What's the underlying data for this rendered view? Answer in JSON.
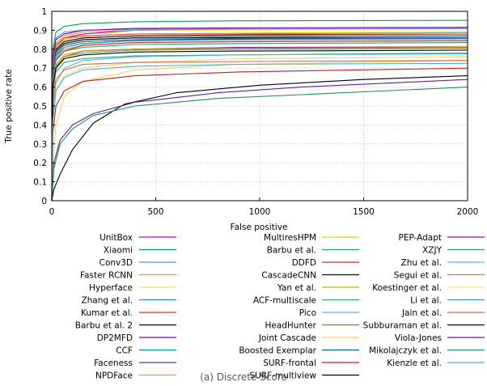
{
  "chart_data": {
    "type": "line",
    "xlabel": "False positive",
    "ylabel": "True positive rate",
    "xlim": [
      0,
      2000
    ],
    "ylim": [
      0,
      1
    ],
    "xticks": [
      0,
      500,
      1000,
      1500,
      2000
    ],
    "yticks": [
      0,
      0.1,
      0.2,
      0.3,
      0.4,
      0.5,
      0.6,
      0.7,
      0.8,
      0.9,
      1
    ],
    "grid": true,
    "legend_placement": "bottom",
    "caption": "(a) Discrete Score",
    "series": [
      {
        "name": "UnitBox",
        "color": "#c000c0",
        "x": [
          0,
          5,
          20,
          60,
          150,
          400,
          900,
          2000
        ],
        "y": [
          0,
          0.72,
          0.82,
          0.86,
          0.88,
          0.9,
          0.91,
          0.915
        ]
      },
      {
        "name": "Xiaomi",
        "color": "#00a060",
        "x": [
          0,
          5,
          20,
          60,
          150,
          400,
          900,
          2000
        ],
        "y": [
          0,
          0.8,
          0.89,
          0.92,
          0.935,
          0.945,
          0.95,
          0.952
        ]
      },
      {
        "name": "Conv3D",
        "color": "#40a0e0",
        "x": [
          0,
          5,
          20,
          60,
          150,
          400,
          900,
          2000
        ],
        "y": [
          0,
          0.78,
          0.86,
          0.89,
          0.9,
          0.905,
          0.91,
          0.912
        ]
      },
      {
        "name": "Faster RCNN",
        "color": "#e0a000",
        "x": [
          0,
          5,
          20,
          60,
          150,
          400,
          900,
          2000
        ],
        "y": [
          0,
          0.74,
          0.83,
          0.87,
          0.89,
          0.9,
          0.905,
          0.908
        ]
      },
      {
        "name": "Hyperface",
        "color": "#f0e050",
        "x": [
          0,
          5,
          20,
          60,
          150,
          400,
          900,
          2000
        ],
        "y": [
          0,
          0.7,
          0.8,
          0.85,
          0.87,
          0.88,
          0.885,
          0.89
        ]
      },
      {
        "name": "Zhang et al.",
        "color": "#3080d0",
        "x": [
          0,
          5,
          20,
          60,
          150,
          400,
          900,
          2000
        ],
        "y": [
          0,
          0.73,
          0.82,
          0.85,
          0.87,
          0.88,
          0.885,
          0.888
        ]
      },
      {
        "name": "Kumar et al.",
        "color": "#e03020",
        "x": [
          0,
          5,
          20,
          60,
          150,
          400,
          900,
          2000
        ],
        "y": [
          0,
          0.7,
          0.79,
          0.83,
          0.85,
          0.86,
          0.865,
          0.87
        ]
      },
      {
        "name": "Barbu et al. 2",
        "color": "#000000",
        "x": [
          0,
          5,
          20,
          60,
          150,
          400,
          900,
          2000
        ],
        "y": [
          0,
          0.72,
          0.8,
          0.84,
          0.86,
          0.87,
          0.875,
          0.88
        ]
      },
      {
        "name": "DP2MFD",
        "color": "#8000c0",
        "x": [
          0,
          5,
          20,
          60,
          150,
          400,
          900,
          2000
        ],
        "y": [
          0,
          0.76,
          0.85,
          0.88,
          0.9,
          0.91,
          0.913,
          0.915
        ]
      },
      {
        "name": "CCF",
        "color": "#009090",
        "x": [
          0,
          5,
          20,
          60,
          150,
          400,
          900,
          2000
        ],
        "y": [
          0,
          0.68,
          0.77,
          0.81,
          0.83,
          0.845,
          0.85,
          0.855
        ]
      },
      {
        "name": "Faceness",
        "color": "#2050a0",
        "x": [
          0,
          5,
          20,
          60,
          150,
          400,
          900,
          2000
        ],
        "y": [
          0,
          0.7,
          0.79,
          0.83,
          0.85,
          0.86,
          0.865,
          0.87
        ]
      },
      {
        "name": "NPDFace",
        "color": "#f0a020",
        "x": [
          0,
          5,
          20,
          60,
          150,
          400,
          900,
          2000
        ],
        "y": [
          0,
          0.66,
          0.76,
          0.8,
          0.82,
          0.835,
          0.84,
          0.845
        ]
      },
      {
        "name": "MultiresHPM",
        "color": "#e0d000",
        "x": [
          0,
          5,
          20,
          60,
          150,
          400,
          900,
          2000
        ],
        "y": [
          0,
          0.72,
          0.81,
          0.85,
          0.87,
          0.88,
          0.885,
          0.89
        ]
      },
      {
        "name": "Barbu et al.",
        "color": "#20a080",
        "x": [
          0,
          5,
          20,
          60,
          150,
          400,
          900,
          2000
        ],
        "y": [
          0,
          0.66,
          0.75,
          0.79,
          0.81,
          0.825,
          0.83,
          0.835
        ]
      },
      {
        "name": "DDFD",
        "color": "#c03030",
        "x": [
          0,
          5,
          20,
          60,
          150,
          400,
          900,
          2000
        ],
        "y": [
          0,
          0.62,
          0.74,
          0.79,
          0.82,
          0.835,
          0.84,
          0.845
        ]
      },
      {
        "name": "CascadeCNN",
        "color": "#101010",
        "x": [
          0,
          5,
          20,
          60,
          150,
          400,
          900,
          2000
        ],
        "y": [
          0,
          0.7,
          0.79,
          0.83,
          0.85,
          0.86,
          0.86,
          0.86
        ]
      },
      {
        "name": "Yan et al.",
        "color": "#d0b000",
        "x": [
          0,
          5,
          20,
          60,
          150,
          400,
          900,
          2000
        ],
        "y": [
          0,
          0.6,
          0.72,
          0.77,
          0.79,
          0.8,
          0.81,
          0.815
        ]
      },
      {
        "name": "ACF-multiscale",
        "color": "#30b070",
        "x": [
          0,
          5,
          20,
          60,
          150,
          400,
          900,
          2000
        ],
        "y": [
          0,
          0.6,
          0.71,
          0.76,
          0.78,
          0.795,
          0.8,
          0.805
        ]
      },
      {
        "name": "Pico",
        "color": "#60b0e0",
        "x": [
          0,
          5,
          20,
          60,
          150,
          400,
          900,
          2000
        ],
        "y": [
          0,
          0.4,
          0.58,
          0.66,
          0.7,
          0.73,
          0.75,
          0.76
        ]
      },
      {
        "name": "HeadHunter",
        "color": "#e05030",
        "x": [
          0,
          5,
          20,
          60,
          150,
          400,
          900,
          2000
        ],
        "y": [
          0,
          0.72,
          0.82,
          0.86,
          0.87,
          0.88,
          0.88,
          0.88
        ]
      },
      {
        "name": "Joint Cascade",
        "color": "#f0d060",
        "x": [
          0,
          5,
          20,
          60,
          150,
          400,
          900,
          2000
        ],
        "y": [
          0,
          0.2,
          0.4,
          0.55,
          0.63,
          0.69,
          0.72,
          0.74
        ]
      },
      {
        "name": "Boosted Exemplar",
        "color": "#106080",
        "x": [
          0,
          5,
          20,
          60,
          150,
          400,
          900,
          2000
        ],
        "y": [
          0,
          0.7,
          0.78,
          0.82,
          0.84,
          0.85,
          0.855,
          0.86
        ]
      },
      {
        "name": "SURF-frontal",
        "color": "#c02020",
        "x": [
          0,
          5,
          20,
          60,
          150,
          400,
          900,
          2000
        ],
        "y": [
          0,
          0.35,
          0.5,
          0.58,
          0.63,
          0.66,
          0.68,
          0.7
        ]
      },
      {
        "name": "SURF-multiview",
        "color": "#000000",
        "x": [
          0,
          10,
          40,
          100,
          200,
          350,
          600,
          1000,
          1500,
          2000
        ],
        "y": [
          0,
          0.06,
          0.14,
          0.27,
          0.41,
          0.51,
          0.57,
          0.61,
          0.64,
          0.66
        ]
      },
      {
        "name": "PEP-Adapt",
        "color": "#b000a0",
        "x": [
          0,
          5,
          20,
          60,
          150,
          400,
          900,
          2000
        ],
        "y": [
          0,
          0.58,
          0.7,
          0.76,
          0.79,
          0.8,
          0.81,
          0.81
        ]
      },
      {
        "name": "XZJY",
        "color": "#30a070",
        "x": [
          0,
          5,
          20,
          60,
          150,
          400,
          900,
          2000
        ],
        "y": [
          0,
          0.58,
          0.68,
          0.73,
          0.75,
          0.765,
          0.77,
          0.78
        ]
      },
      {
        "name": "Zhu et al.",
        "color": "#50b8e8",
        "x": [
          0,
          5,
          20,
          60,
          150,
          400,
          900,
          2000
        ],
        "y": [
          0,
          0.45,
          0.62,
          0.7,
          0.74,
          0.76,
          0.77,
          0.775
        ]
      },
      {
        "name": "Segui et al.",
        "color": "#d09000",
        "x": [
          0,
          5,
          20,
          60,
          150,
          400,
          900,
          2000
        ],
        "y": [
          0,
          0.55,
          0.7,
          0.76,
          0.79,
          0.8,
          0.805,
          0.81
        ]
      },
      {
        "name": "Koestinger et al.",
        "color": "#f0e878",
        "x": [
          0,
          5,
          20,
          60,
          150,
          400,
          900,
          2000
        ],
        "y": [
          0,
          0.4,
          0.58,
          0.66,
          0.7,
          0.73,
          0.75,
          0.76
        ]
      },
      {
        "name": "Li et al.",
        "color": "#4090d0",
        "x": [
          0,
          5,
          20,
          60,
          150,
          400,
          900,
          2000
        ],
        "y": [
          0,
          0.65,
          0.76,
          0.81,
          0.83,
          0.845,
          0.85,
          0.855
        ]
      },
      {
        "name": "Jain et al.",
        "color": "#e06050",
        "x": [
          0,
          5,
          20,
          60,
          150,
          400,
          900,
          2000
        ],
        "y": [
          0,
          0.52,
          0.64,
          0.69,
          0.72,
          0.73,
          0.735,
          0.74
        ]
      },
      {
        "name": "Subburaman et al.",
        "color": "#000000",
        "x": [
          0,
          5,
          20,
          60,
          150,
          400,
          900,
          2000
        ],
        "y": [
          0,
          0.6,
          0.7,
          0.75,
          0.77,
          0.785,
          0.79,
          0.795
        ]
      },
      {
        "name": "Viola-Jones",
        "color": "#6020a0",
        "x": [
          0,
          10,
          40,
          100,
          200,
          400,
          800,
          1200,
          2000
        ],
        "y": [
          0,
          0.2,
          0.32,
          0.4,
          0.46,
          0.52,
          0.57,
          0.6,
          0.64
        ]
      },
      {
        "name": "Mikolajczyk et al.",
        "color": "#209060",
        "x": [
          0,
          10,
          40,
          100,
          200,
          400,
          800,
          1200,
          2000
        ],
        "y": [
          0,
          0.17,
          0.3,
          0.38,
          0.45,
          0.5,
          0.54,
          0.56,
          0.6
        ]
      },
      {
        "name": "Kienzle et al.",
        "color": "#50b0c0",
        "x": [
          0,
          5,
          20,
          60,
          150,
          400,
          900,
          2000
        ],
        "y": [
          0,
          0.42,
          0.58,
          0.65,
          0.69,
          0.71,
          0.72,
          0.725
        ]
      }
    ]
  }
}
